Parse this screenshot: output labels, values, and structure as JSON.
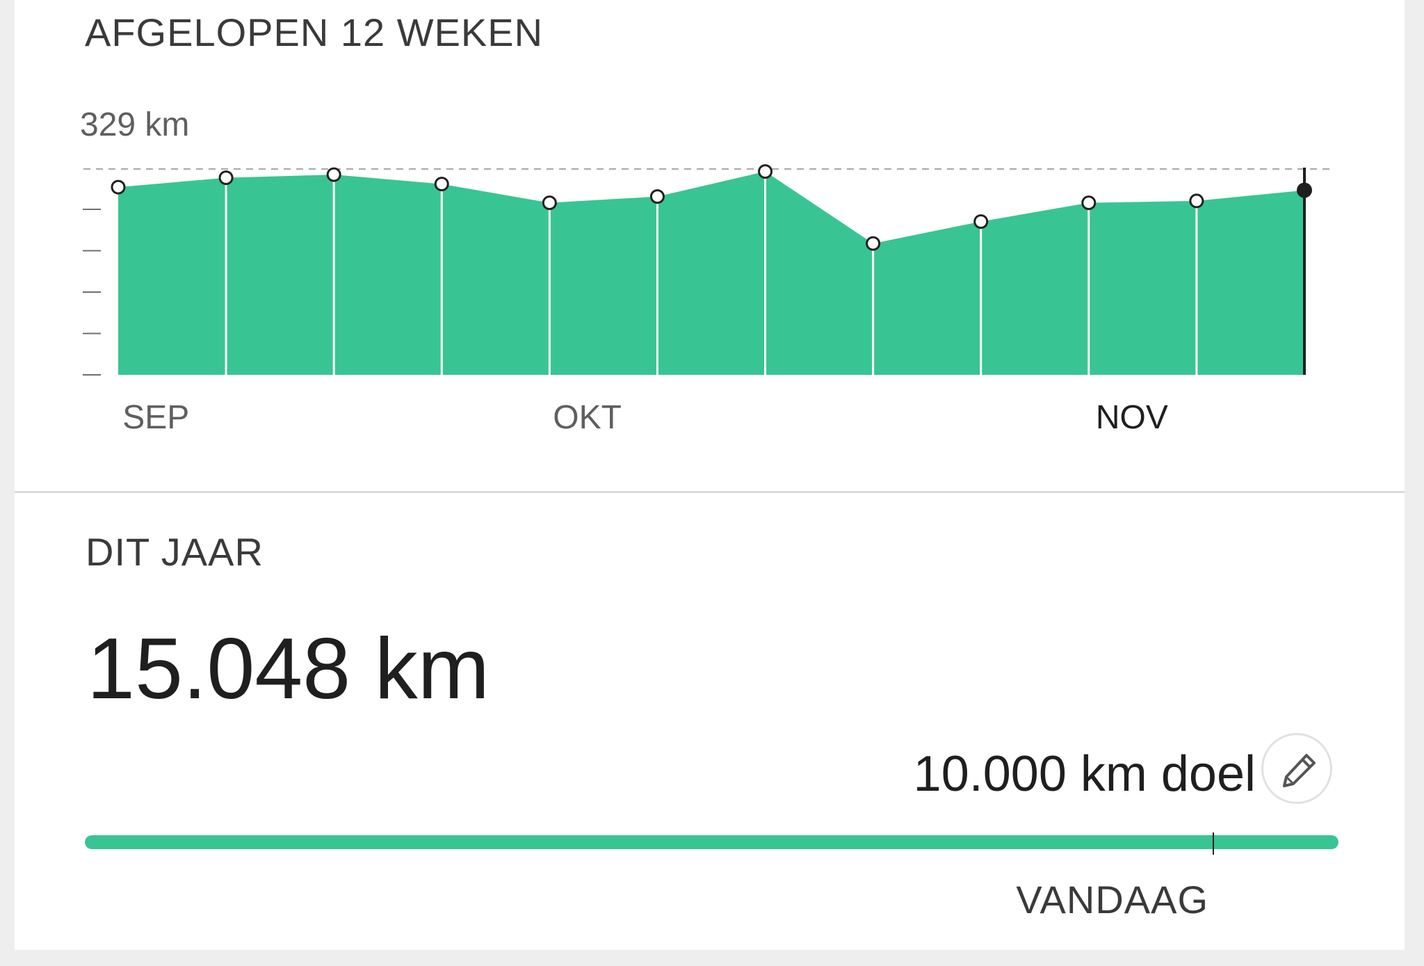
{
  "weeks_card": {
    "title": "AFGELOPEN 12 WEKEN"
  },
  "colors": {
    "accent": "#39c494",
    "text_dark": "#1f1f1f",
    "text_muted": "#5f5f5f"
  },
  "chart_data": {
    "type": "area",
    "unit": "km",
    "y_max_label": "329 km",
    "ylim": [
      0,
      329
    ],
    "x": [
      "w1",
      "w2",
      "w3",
      "w4",
      "w5",
      "w6",
      "w7",
      "w8",
      "w9",
      "w10",
      "w11",
      "w12"
    ],
    "series": [
      {
        "values": [
          300,
          315,
          320,
          305,
          275,
          285,
          325,
          210,
          245,
          275,
          278,
          295
        ]
      }
    ],
    "month_labels": [
      {
        "label": "SEP",
        "week_index": 0.35,
        "current": false
      },
      {
        "label": "OKT",
        "week_index": 4.35,
        "current": false
      },
      {
        "label": "NOV",
        "week_index": 9.4,
        "current": true
      }
    ],
    "reference_line": 329,
    "current_week_index": 11,
    "grid": false
  },
  "year_card": {
    "title": "DIT JAAR",
    "total": "15.048 km",
    "goal_label": "10.000 km doel",
    "edit_icon": "pencil-icon",
    "progress": {
      "fill_fraction": 1.0,
      "today_fraction": 0.9
    },
    "today_label": "VANDAAG"
  }
}
